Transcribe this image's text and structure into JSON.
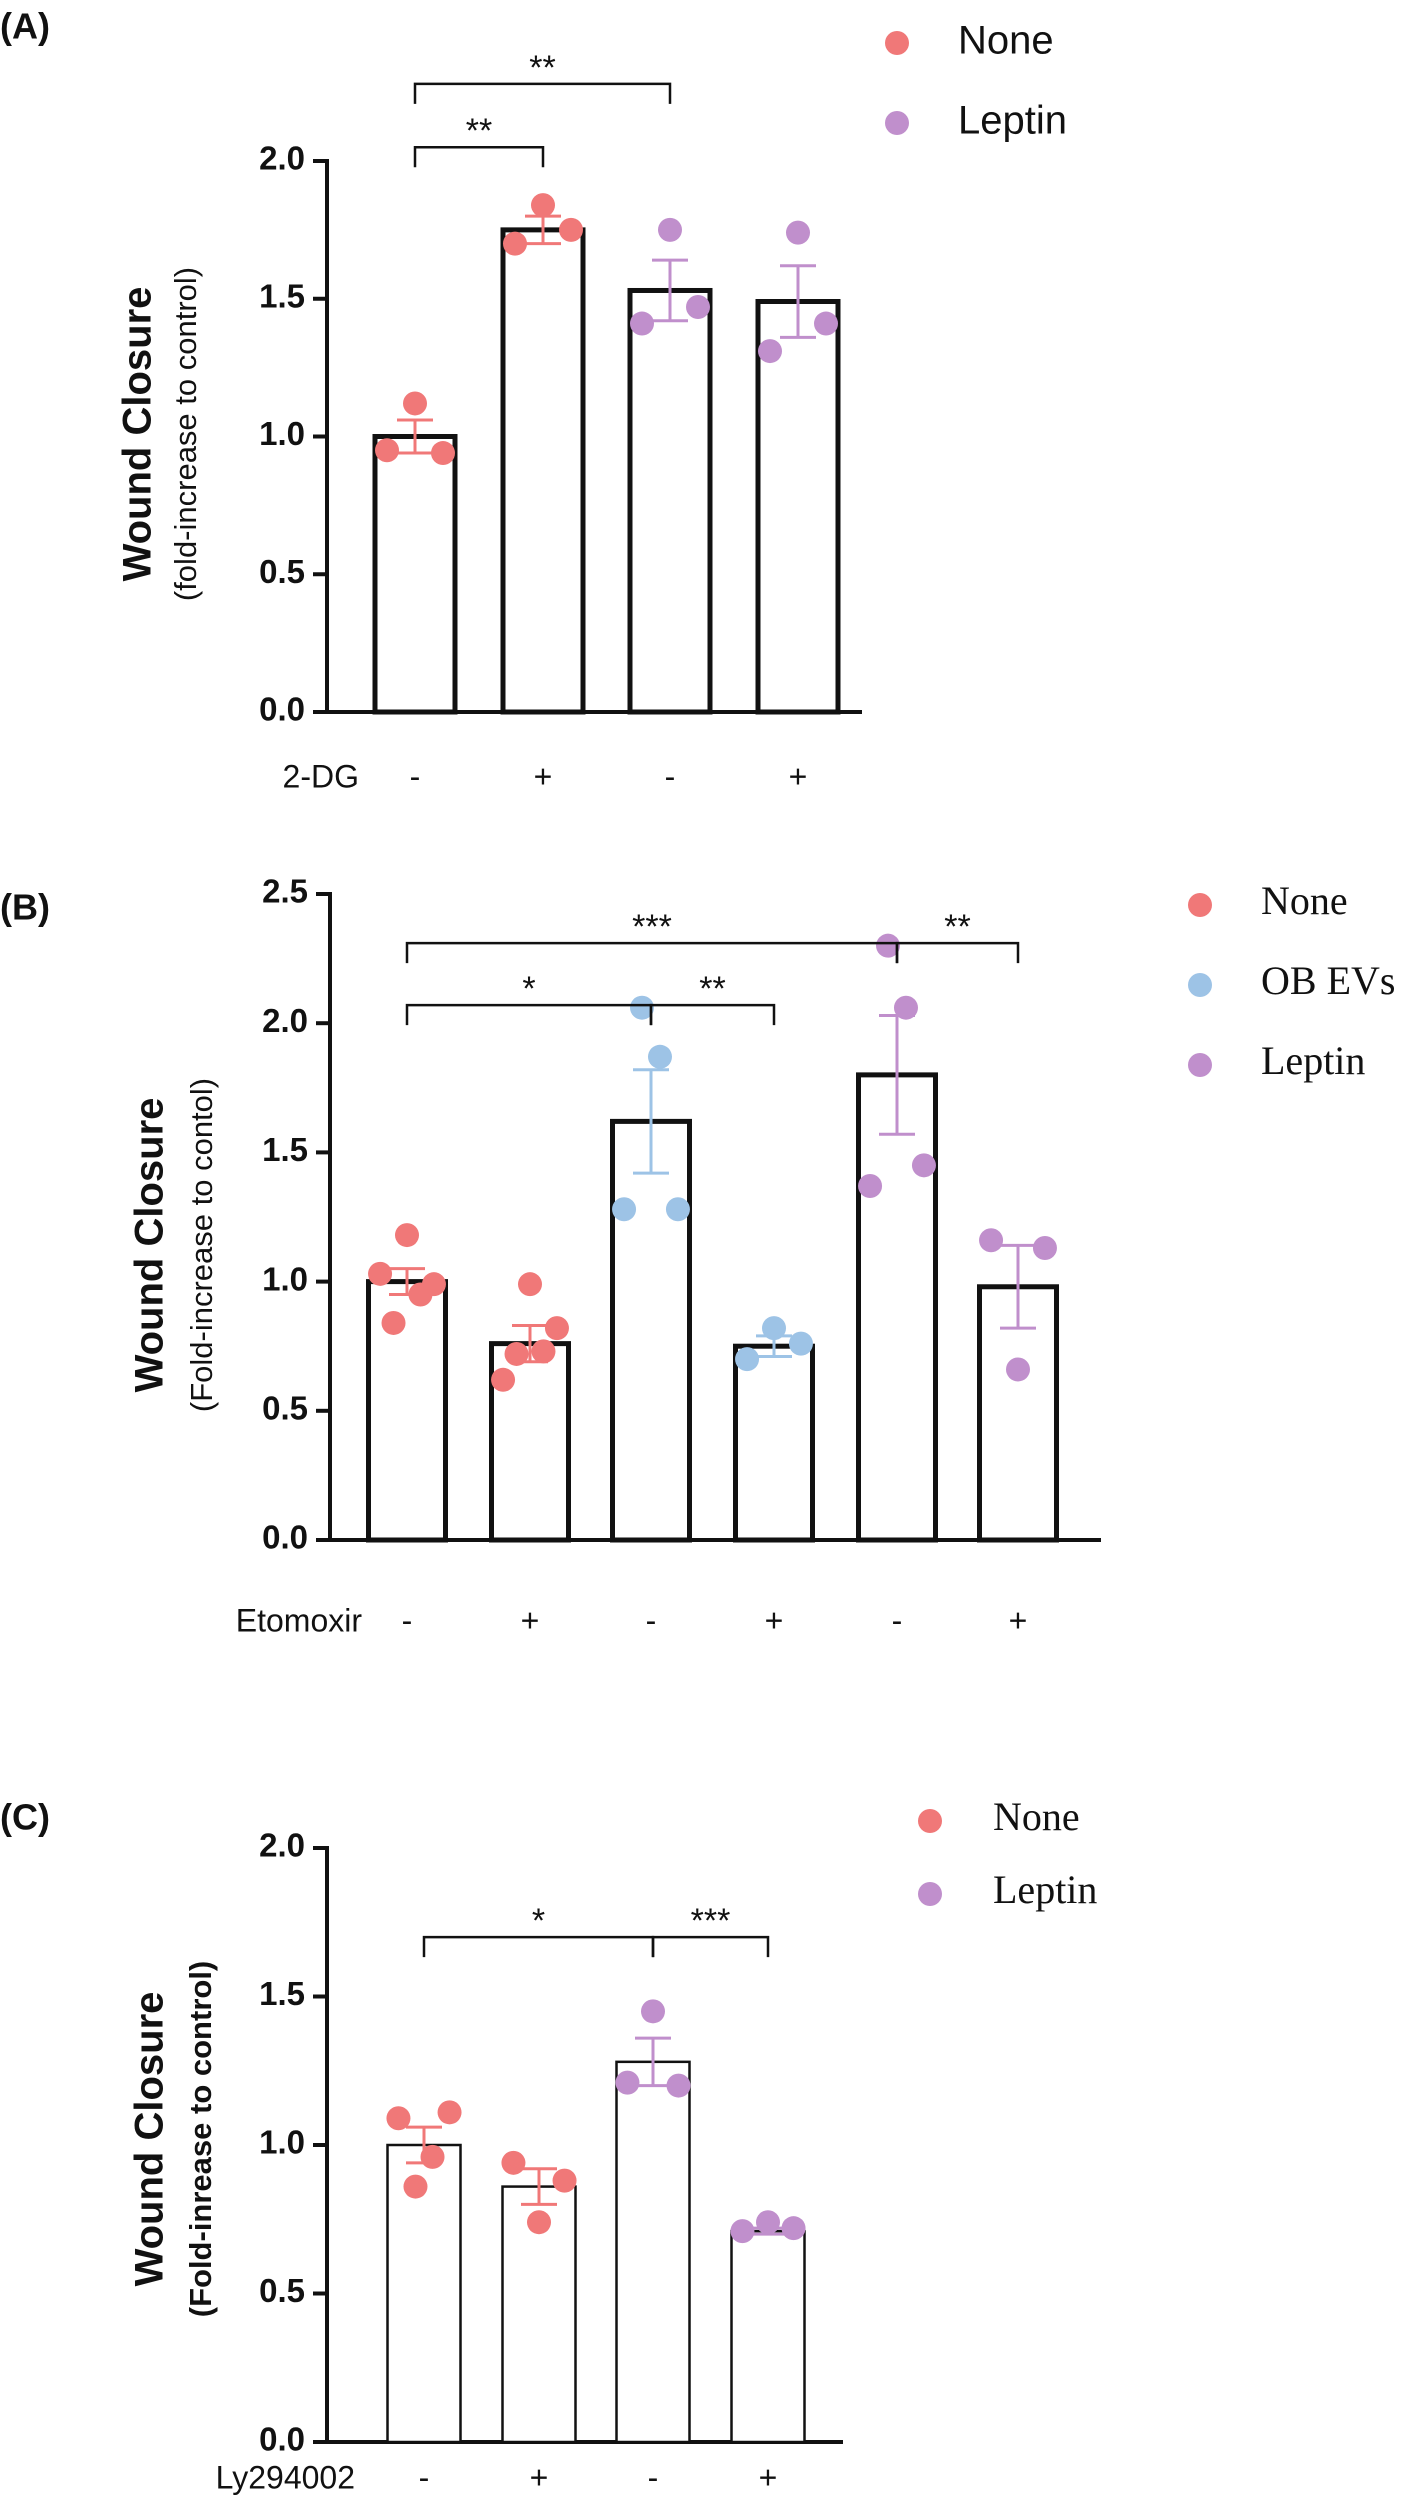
{
  "chart_data": [
    {
      "type": "bar",
      "panel_label": "(A)",
      "ylabel": "Wound Closure",
      "ylabel_sub": "(fold-increase to control)",
      "xlabel": "2-DG",
      "categories": [
        "-",
        "+",
        "-",
        "+"
      ],
      "ylim": [
        0,
        2
      ],
      "yticks": [
        {
          "value": 0,
          "label": "0.0"
        },
        0.5,
        {
          "value": 1,
          "label": "1.0"
        },
        1.5,
        {
          "value": 2,
          "label": "2.0"
        }
      ],
      "series": [
        {
          "name": "None",
          "color": "#f07878",
          "values": [
            1.0,
            1.75,
            null,
            null
          ],
          "errors": [
            0.06,
            0.05,
            null,
            null
          ],
          "points": [
            [
              0.95,
              1.12,
              0.94
            ],
            [
              1.7,
              1.84,
              1.75
            ],
            null,
            null
          ]
        },
        {
          "name": "Leptin",
          "color": "#c08fcc",
          "values": [
            null,
            null,
            1.53,
            1.49
          ],
          "errors": [
            null,
            null,
            0.11,
            0.13
          ],
          "points": [
            null,
            null,
            [
              1.41,
              1.75,
              1.47
            ],
            [
              1.31,
              1.74,
              1.41
            ]
          ]
        }
      ],
      "annotations": [
        {
          "text": "**",
          "from": 0,
          "to": 1,
          "y": 2.05
        },
        {
          "text": "**",
          "from": 0,
          "to": 2,
          "y": 2.28
        }
      ]
    },
    {
      "type": "bar",
      "panel_label": "(B)",
      "ylabel": "Wound Closure",
      "ylabel_sub": "(Fold-increase to contol)",
      "xlabel": "Etomoxir",
      "categories": [
        "-",
        "+",
        "-",
        "+",
        "-",
        "+"
      ],
      "ylim": [
        0,
        2.5
      ],
      "yticks": [
        {
          "value": 0,
          "label": "0.0"
        },
        0.5,
        {
          "value": 1,
          "label": "1.0"
        },
        1.5,
        {
          "value": 2,
          "label": "2.0"
        },
        2.5
      ],
      "series": [
        {
          "name": "None",
          "color": "#f07878",
          "values": [
            1.0,
            0.76,
            null,
            null,
            null,
            null
          ],
          "errors": [
            0.05,
            0.07,
            null,
            null,
            null,
            null
          ],
          "points": [
            [
              1.03,
              0.84,
              1.18,
              0.95,
              0.99
            ],
            [
              0.62,
              0.72,
              0.99,
              0.73,
              0.82
            ],
            null,
            null,
            null,
            null
          ]
        },
        {
          "name": "OB EVs",
          "color": "#9dc3e6",
          "values": [
            null,
            null,
            1.62,
            0.75,
            null,
            null
          ],
          "errors": [
            null,
            null,
            0.2,
            0.04,
            null,
            null
          ],
          "points": [
            null,
            null,
            [
              1.28,
              2.06,
              1.87,
              1.28
            ],
            [
              0.7,
              0.82,
              0.76
            ],
            null,
            null
          ]
        },
        {
          "name": "Leptin",
          "color": "#c08fcc",
          "values": [
            null,
            null,
            null,
            null,
            1.8,
            0.98
          ],
          "errors": [
            null,
            null,
            null,
            null,
            0.23,
            0.16
          ],
          "points": [
            null,
            null,
            null,
            null,
            [
              1.37,
              2.3,
              2.06,
              1.45
            ],
            [
              1.16,
              0.66,
              1.13
            ]
          ]
        }
      ],
      "annotations": [
        {
          "text": "*",
          "from": 0,
          "to": 2,
          "y": 2.07
        },
        {
          "text": "**",
          "from": 2,
          "to": 3,
          "y": 2.07
        },
        {
          "text": "***",
          "from": 0,
          "to": 4,
          "y": 2.31
        },
        {
          "text": "**",
          "from": 4,
          "to": 5,
          "y": 2.31
        }
      ]
    },
    {
      "type": "bar",
      "panel_label": "(C)",
      "ylabel": "Wound Closure",
      "ylabel_sub": "(Fold-inrease to control)",
      "xlabel": "Ly294002",
      "categories": [
        "-",
        "+",
        "-",
        "+"
      ],
      "ylim": [
        0,
        2
      ],
      "yticks": [
        {
          "value": 0,
          "label": "0.0"
        },
        0.5,
        {
          "value": 1,
          "label": "1.0"
        },
        1.5,
        {
          "value": 2,
          "label": "2.0"
        }
      ],
      "series": [
        {
          "name": "None",
          "color": "#f07878",
          "values": [
            1.0,
            0.86,
            null,
            null
          ],
          "errors": [
            0.06,
            0.06,
            null,
            null
          ],
          "points": [
            [
              1.09,
              0.86,
              0.96,
              1.11
            ],
            [
              0.94,
              0.74,
              0.88
            ],
            null,
            null
          ]
        },
        {
          "name": "Leptin",
          "color": "#c08fcc",
          "values": [
            null,
            null,
            1.28,
            0.71
          ],
          "errors": [
            null,
            null,
            0.08,
            0.01
          ],
          "points": [
            null,
            null,
            [
              1.21,
              1.45,
              1.2
            ],
            [
              0.71,
              0.74,
              0.72
            ]
          ]
        }
      ],
      "annotations": [
        {
          "text": "*",
          "from": 0,
          "to": 2,
          "y": 1.7
        },
        {
          "text": "***",
          "from": 2,
          "to": 3,
          "y": 1.7
        }
      ]
    }
  ]
}
